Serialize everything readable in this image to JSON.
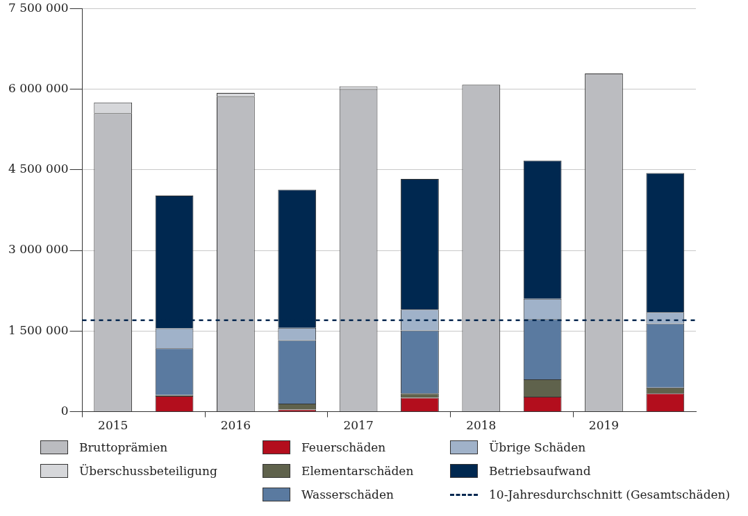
{
  "chart_data": {
    "type": "bar",
    "stacked": true,
    "categories": [
      "2015",
      null,
      "2016",
      null,
      "2017",
      null,
      "2018",
      null,
      "2019",
      null
    ],
    "series": [
      {
        "name": "Bruttoprämien",
        "color": "#bbbcc0",
        "values": [
          5550000,
          null,
          5860000,
          null,
          6000000,
          null,
          6080000,
          null,
          6290000,
          null
        ]
      },
      {
        "name": "Überschussbeteiligung",
        "color": "#d6d7da",
        "values": [
          200000,
          null,
          70000,
          null,
          50000,
          null,
          null,
          null,
          null,
          null
        ]
      },
      {
        "name": "Feuerschäden",
        "color": "#b30e1d",
        "values": [
          null,
          290000,
          null,
          40000,
          null,
          260000,
          null,
          280000,
          null,
          340000
        ]
      },
      {
        "name": "Elementarschäden",
        "color": "#5f624c",
        "values": [
          null,
          20000,
          null,
          110000,
          null,
          80000,
          null,
          320000,
          null,
          110000
        ]
      },
      {
        "name": "Wasserschäden",
        "color": "#5a7aa0",
        "values": [
          null,
          870000,
          null,
          1180000,
          null,
          1170000,
          null,
          1120000,
          null,
          1190000
        ]
      },
      {
        "name": "Übrige Schäden",
        "color": "#a0b2c9",
        "values": [
          null,
          370000,
          null,
          230000,
          null,
          390000,
          null,
          380000,
          null,
          210000
        ]
      },
      {
        "name": "Betriebsaufwand",
        "color": "#002850",
        "values": [
          null,
          2470000,
          null,
          2570000,
          null,
          2430000,
          null,
          2570000,
          null,
          2590000
        ]
      }
    ],
    "ylim": [
      0,
      7500000
    ],
    "yticks": [
      {
        "value": 0,
        "label": "0"
      },
      {
        "value": 1500000,
        "label": "1 500 000"
      },
      {
        "value": 3000000,
        "label": "3 000 000"
      },
      {
        "value": 4500000,
        "label": "4 500 000"
      },
      {
        "value": 6000000,
        "label": "6 000 000"
      },
      {
        "value": 7500000,
        "label": "7 500 000"
      }
    ],
    "grid": "y",
    "legend": "bottom",
    "ref_lines": [
      {
        "axis": "y",
        "value": 1700000,
        "label": "10-Jahresdurchschnitt (Gesamtschäden)",
        "color": "#002850",
        "line_style": "dashed"
      }
    ]
  }
}
